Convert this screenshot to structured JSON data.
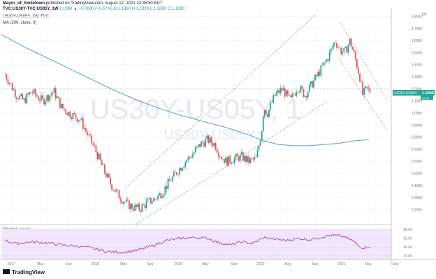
{
  "header": {
    "publisher_name": "Mayor_of_Smiletown",
    "publisher_rest": " published on TradingView.com, August 12, 2021 12:38:50 EDT",
    "symbol_line_bold": "TVC:US30Y-TVC:US05Y, 1W",
    "symbol_line_rest": "1.1990 ▲ +0.0080 (+0.67%) O:1.1860 H:1.1990 L:1.1690 C:1.1990"
  },
  "legend": {
    "main": "US30Y-US05Y, 1W, TVC",
    "ma": "MA (200, close, 0)",
    "rsi": "RSI (14, close)"
  },
  "watermark": {
    "big": "US30Y-US05Y, 1",
    "small": "US30Y-US05Y"
  },
  "price_badge": {
    "symbol": "US30Y-US05Y",
    "value": "1.1990",
    "timer": "4d 9h"
  },
  "pct_label": "pct",
  "footer_logo": "TradingView",
  "colors": {
    "up": "#26a69a",
    "down": "#ef5350",
    "ma": "#5b9bd5",
    "rsi": "#9c27b0",
    "rsi_band": "#f1e6fb",
    "channel_green": "#81c784",
    "channel_red": "#ef9a9a",
    "badge": "#26a69a"
  },
  "chart_data": {
    "type": "line",
    "y_axis": {
      "ticks": [
        "1.8000",
        "1.7000",
        "1.6000",
        "1.5000",
        "1.4000",
        "1.3000",
        "1.2000",
        "1.1000",
        "1.0000",
        "0.9000",
        "0.8000",
        "0.7000",
        "0.6000",
        "0.5000",
        "0.4000",
        "0.3000",
        "0.2000"
      ],
      "range": [
        0.1,
        1.85
      ]
    },
    "x_axis": {
      "ticks": [
        "2017",
        "May",
        "Sep",
        "2018",
        "May",
        "Sep",
        "2019",
        "May",
        "Sep",
        "2020",
        "May",
        "Sep",
        "2021",
        "May",
        "Sep"
      ],
      "range": [
        2016.7,
        2021.9
      ]
    },
    "rsi_axis": {
      "ticks": [
        "80.00",
        "60.00",
        "40.00",
        "20.00"
      ],
      "range": [
        15,
        85
      ],
      "band": [
        30,
        70
      ]
    },
    "price_series": {
      "name": "US30Y-US05Y",
      "t": [
        2016.75,
        2016.9,
        2017.0,
        2017.1,
        2017.25,
        2017.4,
        2017.5,
        2017.6,
        2017.75,
        2017.85,
        2017.95,
        2018.05,
        2018.15,
        2018.25,
        2018.35,
        2018.45,
        2018.55,
        2018.65,
        2018.75,
        2018.85,
        2018.95,
        2019.05,
        2019.15,
        2019.25,
        2019.35,
        2019.45,
        2019.55,
        2019.62,
        2019.7,
        2019.8,
        2019.9,
        2020.0,
        2020.1,
        2020.17,
        2020.2,
        2020.25,
        2020.35,
        2020.45,
        2020.55,
        2020.65,
        2020.75,
        2020.85,
        2020.95,
        2021.05,
        2021.15,
        2021.22,
        2021.28,
        2021.35,
        2021.42,
        2021.48,
        2021.52,
        2021.57,
        2021.62
      ],
      "v": [
        1.32,
        1.15,
        1.1,
        1.18,
        1.1,
        1.18,
        1.05,
        1.0,
        0.95,
        0.82,
        0.7,
        0.55,
        0.42,
        0.33,
        0.26,
        0.22,
        0.21,
        0.26,
        0.29,
        0.35,
        0.44,
        0.52,
        0.6,
        0.66,
        0.74,
        0.78,
        0.74,
        0.65,
        0.6,
        0.62,
        0.64,
        0.6,
        0.62,
        0.85,
        1.05,
        1.0,
        1.15,
        1.2,
        1.1,
        1.22,
        1.15,
        1.25,
        1.35,
        1.45,
        1.6,
        1.52,
        1.5,
        1.6,
        1.45,
        1.3,
        1.15,
        1.2,
        1.18
      ]
    },
    "ma_series": {
      "name": "MA (200, close, 0)",
      "t": [
        2016.7,
        2017.0,
        2017.3,
        2017.6,
        2017.9,
        2018.2,
        2018.5,
        2018.8,
        2019.1,
        2019.4,
        2019.7,
        2020.0,
        2020.2,
        2020.4,
        2020.6,
        2020.8,
        2021.0,
        2021.2,
        2021.4,
        2021.6
      ],
      "v": [
        1.65,
        1.55,
        1.46,
        1.37,
        1.28,
        1.19,
        1.11,
        1.04,
        0.98,
        0.93,
        0.88,
        0.82,
        0.77,
        0.74,
        0.73,
        0.73,
        0.74,
        0.75,
        0.77,
        0.78
      ]
    },
    "rsi_series": {
      "name": "RSI (14, close)",
      "t": [
        2016.75,
        2016.9,
        2017.1,
        2017.3,
        2017.5,
        2017.7,
        2017.9,
        2018.1,
        2018.3,
        2018.5,
        2018.7,
        2018.9,
        2019.1,
        2019.3,
        2019.45,
        2019.6,
        2019.75,
        2019.9,
        2020.05,
        2020.2,
        2020.35,
        2020.5,
        2020.65,
        2020.8,
        2020.95,
        2021.1,
        2021.25,
        2021.38,
        2021.45,
        2021.52,
        2021.62
      ],
      "v": [
        55,
        48,
        52,
        50,
        45,
        42,
        38,
        30,
        28,
        32,
        42,
        55,
        60,
        62,
        60,
        50,
        45,
        52,
        48,
        62,
        58,
        55,
        60,
        57,
        62,
        67,
        65,
        55,
        45,
        38,
        42
      ]
    },
    "channels": {
      "green_upper": {
        "t": [
          2018.35,
          2020.9
        ],
        "v": [
          0.38,
          1.82
        ]
      },
      "green_lower": {
        "t": [
          2018.5,
          2021.05
        ],
        "v": [
          0.08,
          1.1
        ]
      },
      "red_upper": {
        "t": [
          2021.22,
          2021.85
        ],
        "v": [
          1.75,
          1.1
        ]
      },
      "red_lower": {
        "t": [
          2021.2,
          2021.85
        ],
        "v": [
          1.45,
          0.85
        ]
      }
    },
    "current_price_line": 1.199
  }
}
